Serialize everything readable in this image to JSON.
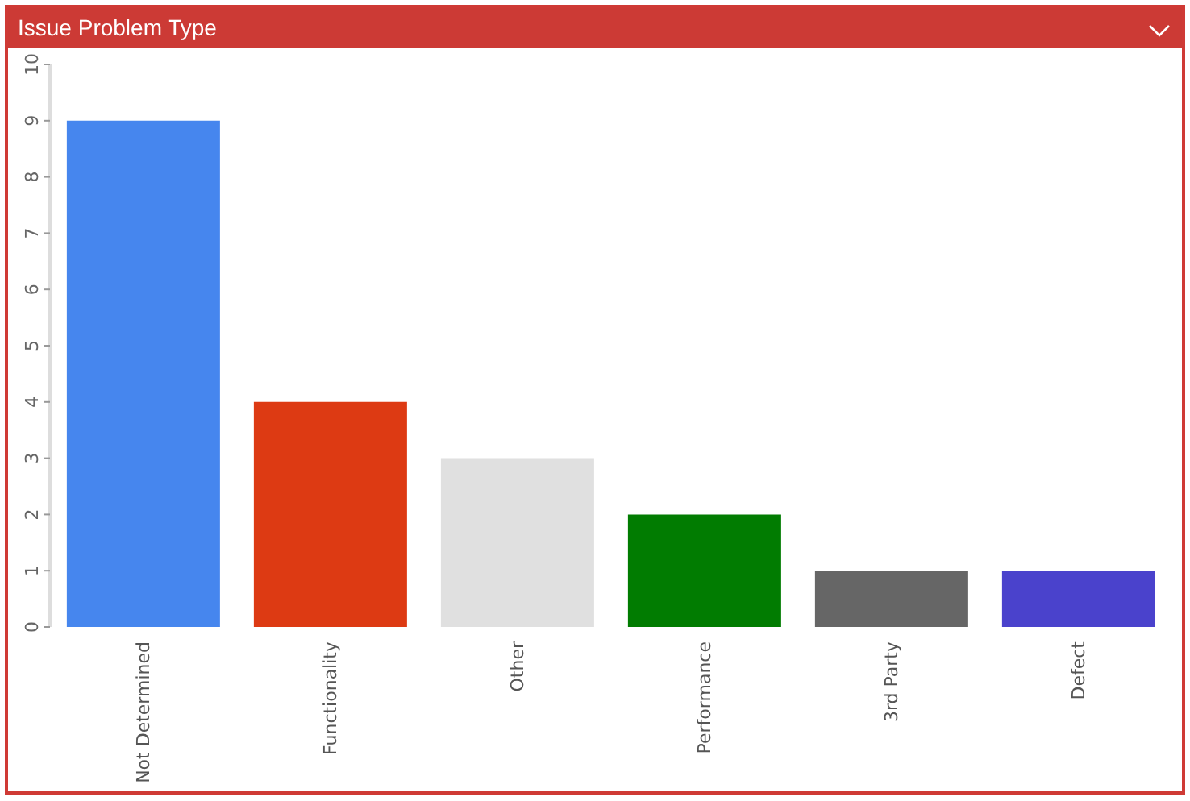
{
  "chart_data": {
    "type": "bar",
    "title": "Issue Problem Type",
    "categories": [
      "Not Determined",
      "Functionality",
      "Other",
      "Performance",
      "3rd Party",
      "Defect"
    ],
    "values": [
      9,
      4,
      3,
      2,
      1,
      1
    ],
    "colors": [
      "#4686ee",
      "#dd3a13",
      "#e0e0e0",
      "#017c01",
      "#666666",
      "#4a42cc"
    ],
    "ylim": [
      0,
      10
    ],
    "yticks": [
      0,
      1,
      2,
      3,
      4,
      5,
      6,
      7,
      8,
      9,
      10
    ]
  }
}
